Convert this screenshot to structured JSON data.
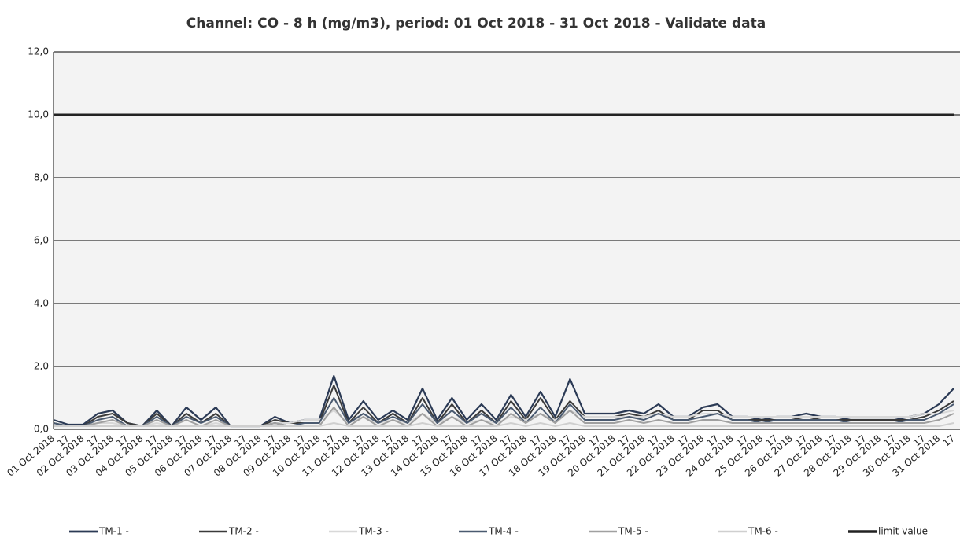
{
  "chart_data": {
    "type": "line",
    "title": "Channel: CO - 8 h (mg/m3), period: 01 Oct 2018 - 31 Oct 2018 - Validate data",
    "categories": [
      "01 Oct 2018",
      "17",
      "02 Oct 2018",
      "17",
      "03 Oct 2018",
      "17",
      "04 Oct 2018",
      "17",
      "05 Oct 2018",
      "17",
      "06 Oct 2018",
      "17",
      "07 Oct 2018",
      "17",
      "08 Oct 2018",
      "17",
      "09 Oct 2018",
      "17",
      "10 Oct 2018",
      "17",
      "11 Oct 2018",
      "17",
      "12 Oct 2018",
      "17",
      "13 Oct 2018",
      "17",
      "14 Oct 2018",
      "17",
      "15 Oct 2018",
      "17",
      "16 Oct 2018",
      "17",
      "17 Oct 2018",
      "17",
      "18 Oct 2018",
      "17",
      "19 Oct 2018",
      "17",
      "20 Oct 2018",
      "17",
      "21 Oct 2018",
      "17",
      "22 Oct 2018",
      "17",
      "23 Oct 2018",
      "17",
      "24 Oct 2018",
      "17",
      "25 Oct 2018",
      "17",
      "26 Oct 2018",
      "17",
      "27 Oct 2018",
      "17",
      "28 Oct 2018",
      "17",
      "29 Oct 2018",
      "17",
      "30 Oct 2018",
      "17",
      "31 Oct 2018",
      "17"
    ],
    "series": [
      {
        "name": "TM-1 -",
        "color": "#2b3a55",
        "width": 2.2,
        "values": [
          0.3,
          0.15,
          0.15,
          0.5,
          0.6,
          0.2,
          0.1,
          0.6,
          0.1,
          0.7,
          0.3,
          0.7,
          0.1,
          0.1,
          0.1,
          0.4,
          0.2,
          0.3,
          0.3,
          1.7,
          0.3,
          0.9,
          0.3,
          0.6,
          0.3,
          1.3,
          0.3,
          1.0,
          0.3,
          0.8,
          0.3,
          1.1,
          0.4,
          1.2,
          0.4,
          1.6,
          0.5,
          0.5,
          0.5,
          0.6,
          0.5,
          0.8,
          0.4,
          0.4,
          0.7,
          0.8,
          0.4,
          0.4,
          0.3,
          0.4,
          0.4,
          0.5,
          0.4,
          0.4,
          0.3,
          0.3,
          0.3,
          0.3,
          0.4,
          0.5,
          0.8,
          1.3
        ]
      },
      {
        "name": "TM-2 -",
        "color": "#3a3a3a",
        "width": 2,
        "values": [
          0.2,
          0.1,
          0.1,
          0.4,
          0.5,
          0.2,
          0.1,
          0.5,
          0.1,
          0.5,
          0.2,
          0.5,
          0.1,
          0.1,
          0.1,
          0.3,
          0.2,
          0.2,
          0.2,
          1.4,
          0.2,
          0.7,
          0.2,
          0.5,
          0.2,
          1.0,
          0.2,
          0.8,
          0.2,
          0.6,
          0.2,
          0.9,
          0.3,
          1.0,
          0.3,
          0.9,
          0.4,
          0.4,
          0.4,
          0.5,
          0.4,
          0.6,
          0.3,
          0.3,
          0.6,
          0.6,
          0.3,
          0.3,
          0.3,
          0.3,
          0.3,
          0.4,
          0.3,
          0.3,
          0.3,
          0.3,
          0.3,
          0.3,
          0.3,
          0.4,
          0.6,
          0.9
        ]
      },
      {
        "name": "TM-3 -",
        "color": "#d8d8d8",
        "width": 2,
        "values": [
          0.1,
          0.1,
          0.1,
          0.2,
          0.2,
          0.1,
          0.1,
          0.2,
          0.1,
          0.3,
          0.1,
          0.2,
          0.1,
          0.1,
          0.1,
          0.2,
          0.2,
          0.3,
          0.3,
          0.6,
          0.2,
          0.4,
          0.2,
          0.3,
          0.2,
          0.5,
          0.2,
          0.4,
          0.2,
          0.3,
          0.2,
          0.4,
          0.3,
          0.5,
          0.3,
          0.6,
          0.4,
          0.4,
          0.4,
          0.4,
          0.4,
          0.5,
          0.4,
          0.4,
          0.5,
          0.5,
          0.4,
          0.4,
          0.4,
          0.4,
          0.4,
          0.4,
          0.4,
          0.4,
          0.4,
          0.4,
          0.4,
          0.4,
          0.4,
          0.5,
          0.5,
          0.6
        ]
      },
      {
        "name": "TM-4 -",
        "color": "#4a5a70",
        "width": 2,
        "values": [
          0.2,
          0.1,
          0.1,
          0.3,
          0.4,
          0.1,
          0.1,
          0.4,
          0.1,
          0.4,
          0.2,
          0.4,
          0.1,
          0.1,
          0.1,
          0.2,
          0.1,
          0.2,
          0.2,
          1.0,
          0.2,
          0.5,
          0.2,
          0.4,
          0.2,
          0.8,
          0.2,
          0.6,
          0.2,
          0.5,
          0.2,
          0.7,
          0.2,
          0.7,
          0.2,
          0.8,
          0.3,
          0.3,
          0.3,
          0.4,
          0.3,
          0.5,
          0.3,
          0.3,
          0.4,
          0.5,
          0.3,
          0.3,
          0.2,
          0.3,
          0.3,
          0.3,
          0.3,
          0.3,
          0.2,
          0.2,
          0.2,
          0.2,
          0.3,
          0.3,
          0.5,
          0.8
        ]
      },
      {
        "name": "TM-5 -",
        "color": "#a0a0a0",
        "width": 2,
        "values": [
          0.1,
          0.1,
          0.1,
          0.2,
          0.3,
          0.1,
          0.1,
          0.3,
          0.1,
          0.3,
          0.1,
          0.3,
          0.1,
          0.1,
          0.1,
          0.2,
          0.1,
          0.1,
          0.1,
          0.7,
          0.1,
          0.4,
          0.1,
          0.3,
          0.1,
          0.5,
          0.1,
          0.4,
          0.1,
          0.3,
          0.1,
          0.5,
          0.2,
          0.5,
          0.2,
          0.6,
          0.2,
          0.2,
          0.2,
          0.3,
          0.2,
          0.3,
          0.2,
          0.2,
          0.3,
          0.3,
          0.2,
          0.2,
          0.2,
          0.2,
          0.2,
          0.2,
          0.2,
          0.2,
          0.2,
          0.2,
          0.2,
          0.2,
          0.2,
          0.2,
          0.3,
          0.5
        ]
      },
      {
        "name": "TM-6 -",
        "color": "#cfcfcf",
        "width": 2,
        "values": [
          0.1,
          0.1,
          0.1,
          0.1,
          0.1,
          0.1,
          0.1,
          0.1,
          0.1,
          0.1,
          0.1,
          0.1,
          0.1,
          0.1,
          0.1,
          0.1,
          0.1,
          0.1,
          0.1,
          0.2,
          0.1,
          0.1,
          0.1,
          0.1,
          0.1,
          0.2,
          0.1,
          0.1,
          0.1,
          0.1,
          0.1,
          0.2,
          0.1,
          0.2,
          0.1,
          0.2,
          0.1,
          0.1,
          0.1,
          0.1,
          0.1,
          0.1,
          0.1,
          0.1,
          0.1,
          0.1,
          0.1,
          0.1,
          0.1,
          0.1,
          0.1,
          0.1,
          0.1,
          0.1,
          0.1,
          0.1,
          0.1,
          0.1,
          0.1,
          0.1,
          0.1,
          0.2
        ]
      },
      {
        "name": "limit value",
        "color": "#222222",
        "width": 3,
        "values": [
          10,
          10,
          10,
          10,
          10,
          10,
          10,
          10,
          10,
          10,
          10,
          10,
          10,
          10,
          10,
          10,
          10,
          10,
          10,
          10,
          10,
          10,
          10,
          10,
          10,
          10,
          10,
          10,
          10,
          10,
          10,
          10,
          10,
          10,
          10,
          10,
          10,
          10,
          10,
          10,
          10,
          10,
          10,
          10,
          10,
          10,
          10,
          10,
          10,
          10,
          10,
          10,
          10,
          10,
          10,
          10,
          10,
          10,
          10,
          10,
          10,
          10
        ]
      }
    ],
    "ylim": [
      0,
      12
    ],
    "yticks": [
      {
        "value": 0,
        "label": "0,0"
      },
      {
        "value": 2,
        "label": "2,0"
      },
      {
        "value": 4,
        "label": "4,0"
      },
      {
        "value": 6,
        "label": "6,0"
      },
      {
        "value": 8,
        "label": "8,0"
      },
      {
        "value": 10,
        "label": "10,0"
      },
      {
        "value": 12,
        "label": "12,0"
      }
    ],
    "grid": true
  }
}
